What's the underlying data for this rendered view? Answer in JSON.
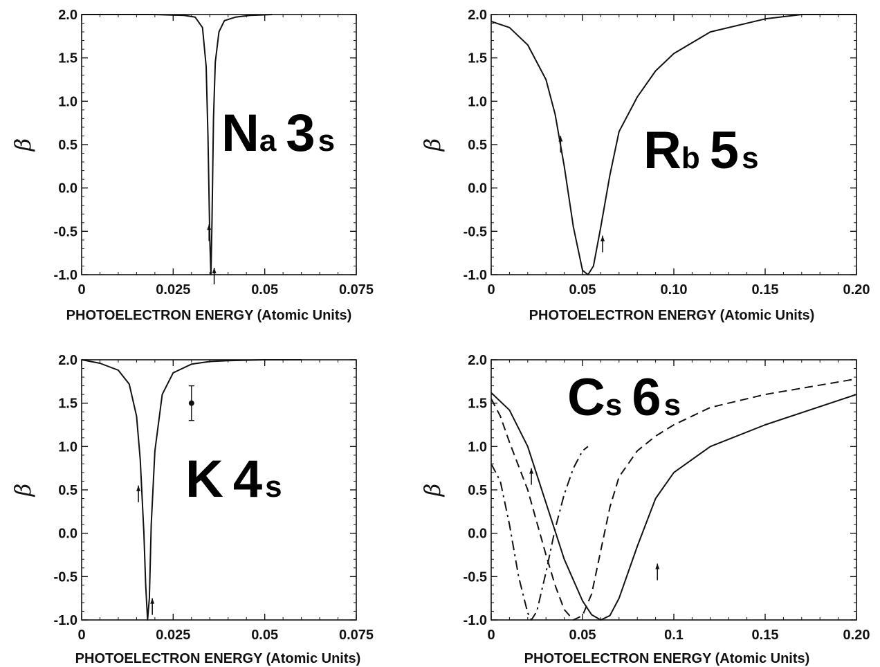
{
  "chart_data": [
    {
      "type": "line",
      "title": "",
      "label_main": "Na",
      "label_sub": "3s",
      "label_main2": "Na",
      "label_suffix": "3",
      "xlabel": "PHOTOELECTRON ENERGY (Atomic Units)",
      "ylabel": "β",
      "xlim": [
        0,
        0.075
      ],
      "ylim": [
        -1.0,
        2.0
      ],
      "xticks": [
        "0",
        "0.025",
        "0.05",
        "0.075"
      ],
      "yticks": [
        "-1.0",
        "-0.5",
        "0.0",
        "0.5",
        "1.0",
        "1.5",
        "2.0"
      ],
      "series": [
        {
          "style": "solid",
          "x": [
            0.0,
            0.01,
            0.02,
            0.028,
            0.031,
            0.033,
            0.034,
            0.0345,
            0.035,
            0.0353,
            0.0356,
            0.036,
            0.0365,
            0.0375,
            0.039,
            0.042,
            0.046,
            0.052
          ],
          "y": [
            2.0,
            2.0,
            2.0,
            1.99,
            1.97,
            1.85,
            1.4,
            0.6,
            -0.6,
            -1.0,
            -0.4,
            0.8,
            1.45,
            1.8,
            1.93,
            1.97,
            1.99,
            2.0
          ]
        }
      ],
      "arrows": [
        {
          "x": 0.0348,
          "y": -0.42
        },
        {
          "x": 0.0362,
          "y": -0.92
        }
      ]
    },
    {
      "type": "line",
      "title": "",
      "label_main": "Rb",
      "label_sub": "5s",
      "xlabel": "PHOTOELECTRON ENERGY (Atomic Units)",
      "ylabel": "β",
      "xlim": [
        0,
        0.2
      ],
      "ylim": [
        -1.0,
        2.0
      ],
      "xticks": [
        "0",
        "0.05",
        "0.10",
        "0.15",
        "0.20"
      ],
      "yticks": [
        "-1.0",
        "-0.5",
        "0.0",
        "0.5",
        "1.0",
        "1.5",
        "2.0"
      ],
      "series": [
        {
          "style": "solid",
          "x": [
            0.0,
            0.01,
            0.02,
            0.03,
            0.035,
            0.04,
            0.045,
            0.05,
            0.053,
            0.056,
            0.06,
            0.065,
            0.07,
            0.08,
            0.09,
            0.1,
            0.12,
            0.15,
            0.17,
            0.2
          ],
          "y": [
            1.92,
            1.85,
            1.65,
            1.25,
            0.85,
            0.25,
            -0.45,
            -0.95,
            -1.0,
            -0.9,
            -0.45,
            0.15,
            0.65,
            1.05,
            1.35,
            1.55,
            1.8,
            1.95,
            2.0,
            2.0
          ]
        }
      ],
      "arrows": [
        {
          "x": 0.038,
          "y": 0.6
        },
        {
          "x": 0.061,
          "y": -0.55
        }
      ]
    },
    {
      "type": "line",
      "title": "",
      "label_main": "K",
      "label_sub": "4s",
      "xlabel": "PHOTOELECTRON ENERGY (Atomic Units)",
      "ylabel": "β",
      "xlim": [
        0,
        0.075
      ],
      "ylim": [
        -1.0,
        2.0
      ],
      "xticks": [
        "0",
        "0.025",
        "0.05",
        "0.075"
      ],
      "yticks": [
        "-1.0",
        "-0.5",
        "0.0",
        "0.5",
        "1.0",
        "1.5",
        "2.0"
      ],
      "series": [
        {
          "style": "solid",
          "x": [
            0.0,
            0.005,
            0.01,
            0.013,
            0.015,
            0.016,
            0.017,
            0.0175,
            0.018,
            0.0185,
            0.019,
            0.02,
            0.022,
            0.025,
            0.03,
            0.035,
            0.04,
            0.05,
            0.06
          ],
          "y": [
            2.0,
            1.96,
            1.88,
            1.72,
            1.35,
            0.85,
            0.0,
            -0.6,
            -1.0,
            -0.75,
            0.1,
            0.95,
            1.6,
            1.85,
            1.95,
            1.98,
            1.99,
            2.0,
            2.0
          ]
        }
      ],
      "points": [
        {
          "x": 0.03,
          "y": 1.5,
          "err": 0.2
        }
      ],
      "arrows": [
        {
          "x": 0.0155,
          "y": 0.55
        },
        {
          "x": 0.0193,
          "y": -0.75
        }
      ]
    },
    {
      "type": "line",
      "title": "",
      "label_main": "Cs",
      "label_sub": "6s",
      "xlabel": "PHOTOELECTRON ENERGY (Atomic Units)",
      "ylabel": "β",
      "xlim": [
        0,
        0.2
      ],
      "ylim": [
        -1.0,
        2.0
      ],
      "xticks": [
        "0",
        "0.05",
        "0.1",
        "0.15",
        "0.20"
      ],
      "yticks": [
        "-1.0",
        "-0.5",
        "0.0",
        "0.5",
        "1.0",
        "1.5",
        "2.0"
      ],
      "series": [
        {
          "style": "solid",
          "x": [
            0.0,
            0.01,
            0.02,
            0.03,
            0.04,
            0.05,
            0.055,
            0.06,
            0.065,
            0.07,
            0.08,
            0.09,
            0.1,
            0.12,
            0.15,
            0.2
          ],
          "y": [
            1.62,
            1.42,
            1.0,
            0.35,
            -0.3,
            -0.78,
            -0.94,
            -1.0,
            -0.95,
            -0.75,
            -0.15,
            0.4,
            0.7,
            1.0,
            1.25,
            1.6
          ]
        },
        {
          "style": "dashed",
          "x": [
            0.0,
            0.005,
            0.01,
            0.02,
            0.03,
            0.035,
            0.04,
            0.045,
            0.05,
            0.055,
            0.06,
            0.065,
            0.07,
            0.08,
            0.09,
            0.1,
            0.12,
            0.15,
            0.2
          ],
          "y": [
            1.55,
            1.35,
            1.05,
            0.5,
            -0.25,
            -0.6,
            -0.88,
            -1.0,
            -0.95,
            -0.7,
            -0.2,
            0.3,
            0.65,
            0.95,
            1.12,
            1.25,
            1.45,
            1.6,
            1.78
          ]
        },
        {
          "style": "dashdot",
          "x": [
            0.0,
            0.005,
            0.01,
            0.015,
            0.02,
            0.022,
            0.025,
            0.03,
            0.035,
            0.04,
            0.045,
            0.05,
            0.053
          ],
          "y": [
            0.8,
            0.6,
            0.1,
            -0.5,
            -0.92,
            -1.0,
            -0.9,
            -0.45,
            0.05,
            0.45,
            0.75,
            0.95,
            1.0
          ]
        }
      ],
      "arrows": [
        {
          "x": 0.022,
          "y": 0.75
        },
        {
          "x": 0.091,
          "y": -0.35
        }
      ]
    }
  ]
}
